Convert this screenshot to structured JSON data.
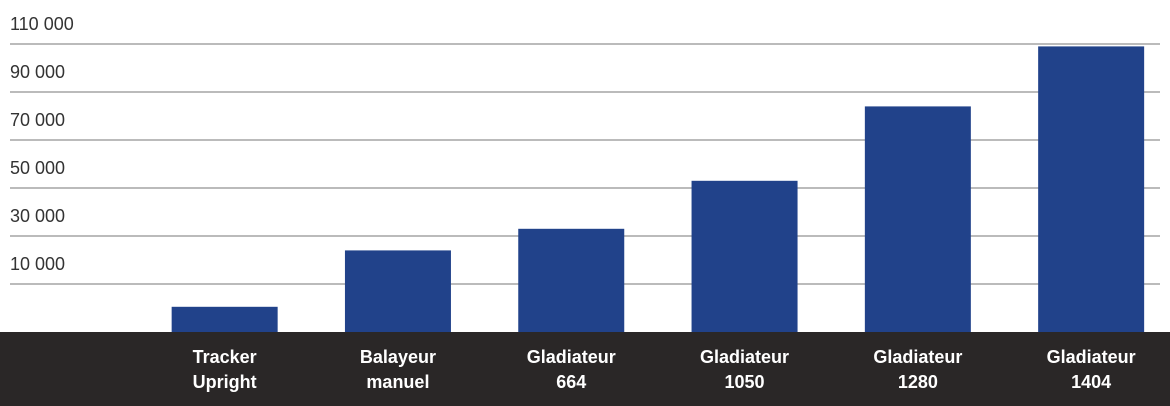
{
  "chart_data": {
    "type": "bar",
    "categories": [
      [
        "Tracker",
        "Upright"
      ],
      [
        "Balayeur",
        "manuel"
      ],
      [
        "Gladiateur",
        "664"
      ],
      [
        "Gladiateur",
        "1050"
      ],
      [
        "Gladiateur",
        "1280"
      ],
      [
        "Gladiateur",
        "1404"
      ]
    ],
    "values": [
      500,
      24000,
      33000,
      53000,
      84000,
      109000
    ],
    "color": "#21428a",
    "ylim": [
      -10000,
      110000
    ],
    "yticks": [
      {
        "value": 10000,
        "label": "10 000"
      },
      {
        "value": 30000,
        "label": "30 000"
      },
      {
        "value": 50000,
        "label": "50 000"
      },
      {
        "value": 70000,
        "label": "70 000"
      },
      {
        "value": 90000,
        "label": "90 000"
      },
      {
        "value": 110000,
        "label": "110 000"
      }
    ],
    "grid": true
  }
}
